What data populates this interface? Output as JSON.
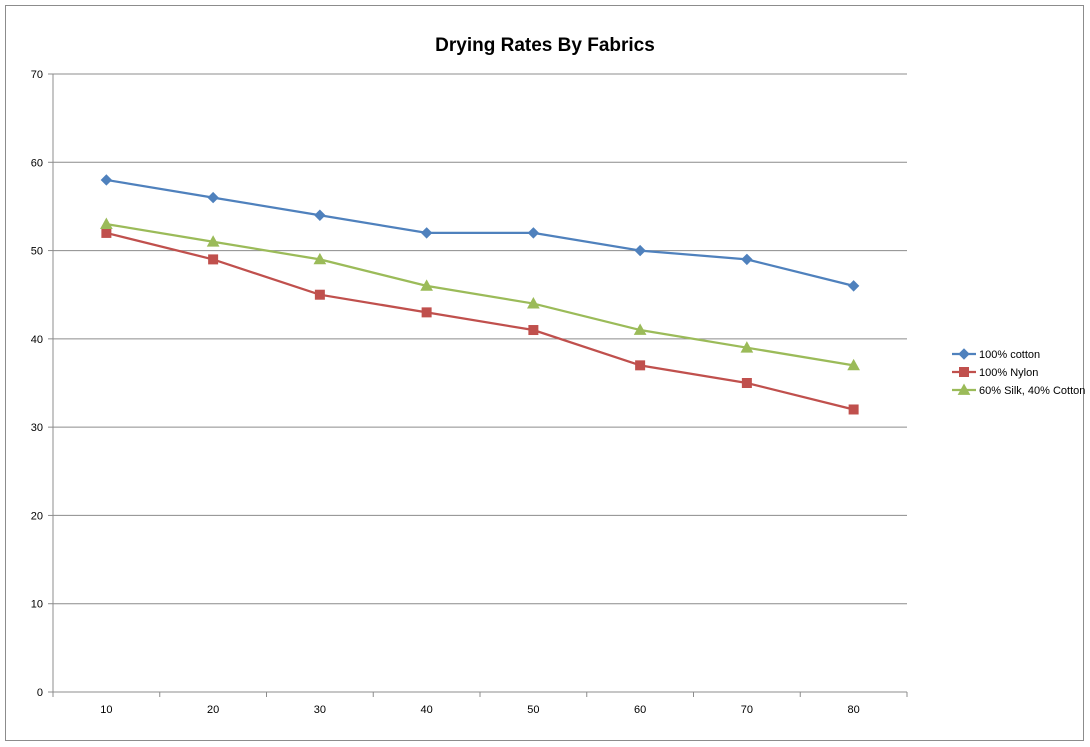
{
  "chart_data": {
    "type": "line",
    "title": "Drying Rates By Fabrics",
    "xlabel": "",
    "ylabel": "",
    "categories": [
      "10",
      "20",
      "30",
      "40",
      "50",
      "60",
      "70",
      "80"
    ],
    "ylim": [
      0,
      70
    ],
    "yticks": [
      "0",
      "10",
      "20",
      "30",
      "40",
      "50",
      "60",
      "70"
    ],
    "grid": true,
    "legend": "right",
    "series": [
      {
        "name": "100% cotton",
        "values": [
          58,
          56,
          54,
          52,
          52,
          50,
          49,
          46
        ],
        "color": "#4f81bd",
        "marker": "diamond"
      },
      {
        "name": "100% Nylon",
        "values": [
          52,
          49,
          45,
          43,
          41,
          37,
          35,
          32
        ],
        "color": "#c0504d",
        "marker": "square"
      },
      {
        "name": "60% Silk, 40% Cotton",
        "values": [
          53,
          51,
          49,
          46,
          44,
          41,
          39,
          37
        ],
        "color": "#9bbb59",
        "marker": "triangle"
      }
    ]
  }
}
